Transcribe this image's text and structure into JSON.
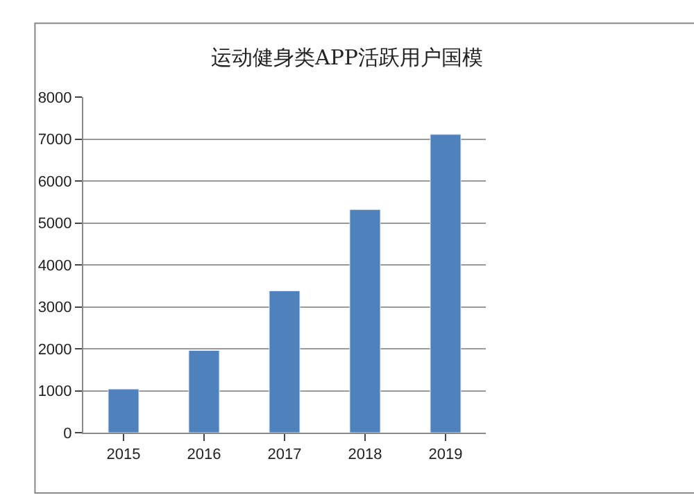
{
  "chart_data": {
    "type": "bar",
    "title": "运动健身类APP活跃用户国模",
    "categories": [
      "2015",
      "2016",
      "2017",
      "2018",
      "2019"
    ],
    "values": [
      1040,
      1960,
      3380,
      5320,
      7110
    ],
    "color": "#4f81bd",
    "ylim": [
      0,
      8000
    ],
    "yticks": [
      0,
      1000,
      2000,
      3000,
      4000,
      5000,
      6000,
      7000,
      8000
    ],
    "grid": "y",
    "legend": false
  }
}
